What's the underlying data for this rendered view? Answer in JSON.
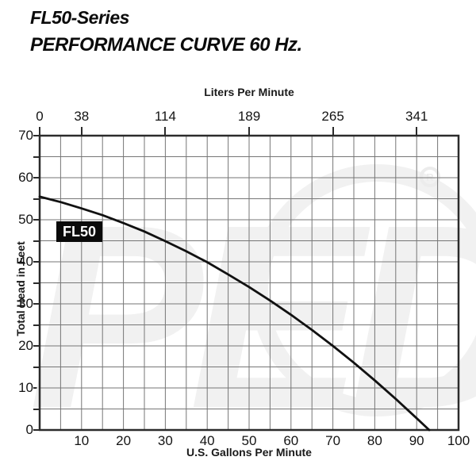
{
  "title": {
    "line1": "FL50-Series",
    "line2": "PERFORMANCE CURVE 60 Hz."
  },
  "chart_data": {
    "type": "line",
    "top_axis": {
      "label": "Liters Per Minute",
      "ticks": [
        {
          "gpm": 0,
          "label": "0"
        },
        {
          "gpm": 10,
          "label": "38"
        },
        {
          "gpm": 30,
          "label": "114"
        },
        {
          "gpm": 50,
          "label": "189"
        },
        {
          "gpm": 70,
          "label": "265"
        },
        {
          "gpm": 90,
          "label": "341"
        }
      ]
    },
    "x_axis": {
      "label": "U.S. Gallons Per Minute",
      "min": 0,
      "max": 100,
      "label_step": 10,
      "grid_step": 5,
      "tick_labels": [
        10,
        20,
        30,
        40,
        50,
        60,
        70,
        80,
        90,
        100
      ]
    },
    "y_axis": {
      "label": "Total Head in Feet",
      "min": 0,
      "max": 70,
      "label_step": 10,
      "grid_step": 5,
      "tick_labels": [
        0,
        10,
        20,
        30,
        40,
        50,
        60,
        70
      ]
    },
    "series": [
      {
        "name": "FL50",
        "points": [
          [
            0,
            55.5
          ],
          [
            5,
            54.2
          ],
          [
            10,
            52.7
          ],
          [
            15,
            51.1
          ],
          [
            20,
            49.2
          ],
          [
            25,
            47.2
          ],
          [
            30,
            44.9
          ],
          [
            35,
            42.5
          ],
          [
            40,
            39.9
          ],
          [
            45,
            37.0
          ],
          [
            50,
            34.0
          ],
          [
            55,
            30.8
          ],
          [
            60,
            27.4
          ],
          [
            65,
            23.8
          ],
          [
            70,
            20.0
          ],
          [
            75,
            16.0
          ],
          [
            80,
            11.8
          ],
          [
            85,
            7.4
          ],
          [
            90,
            2.8
          ],
          [
            93,
            0
          ]
        ]
      }
    ],
    "grid": true,
    "legend": "inline-badge"
  },
  "watermark": {
    "text": "PED",
    "registered_mark": "R"
  },
  "colors": {
    "curve": "#111111",
    "grid_line": "#767676",
    "plot_border": "#2b2b2b",
    "badge_bg": "#0a0a0a",
    "badge_text": "#ffffff",
    "watermark": "#f1f1f1"
  }
}
